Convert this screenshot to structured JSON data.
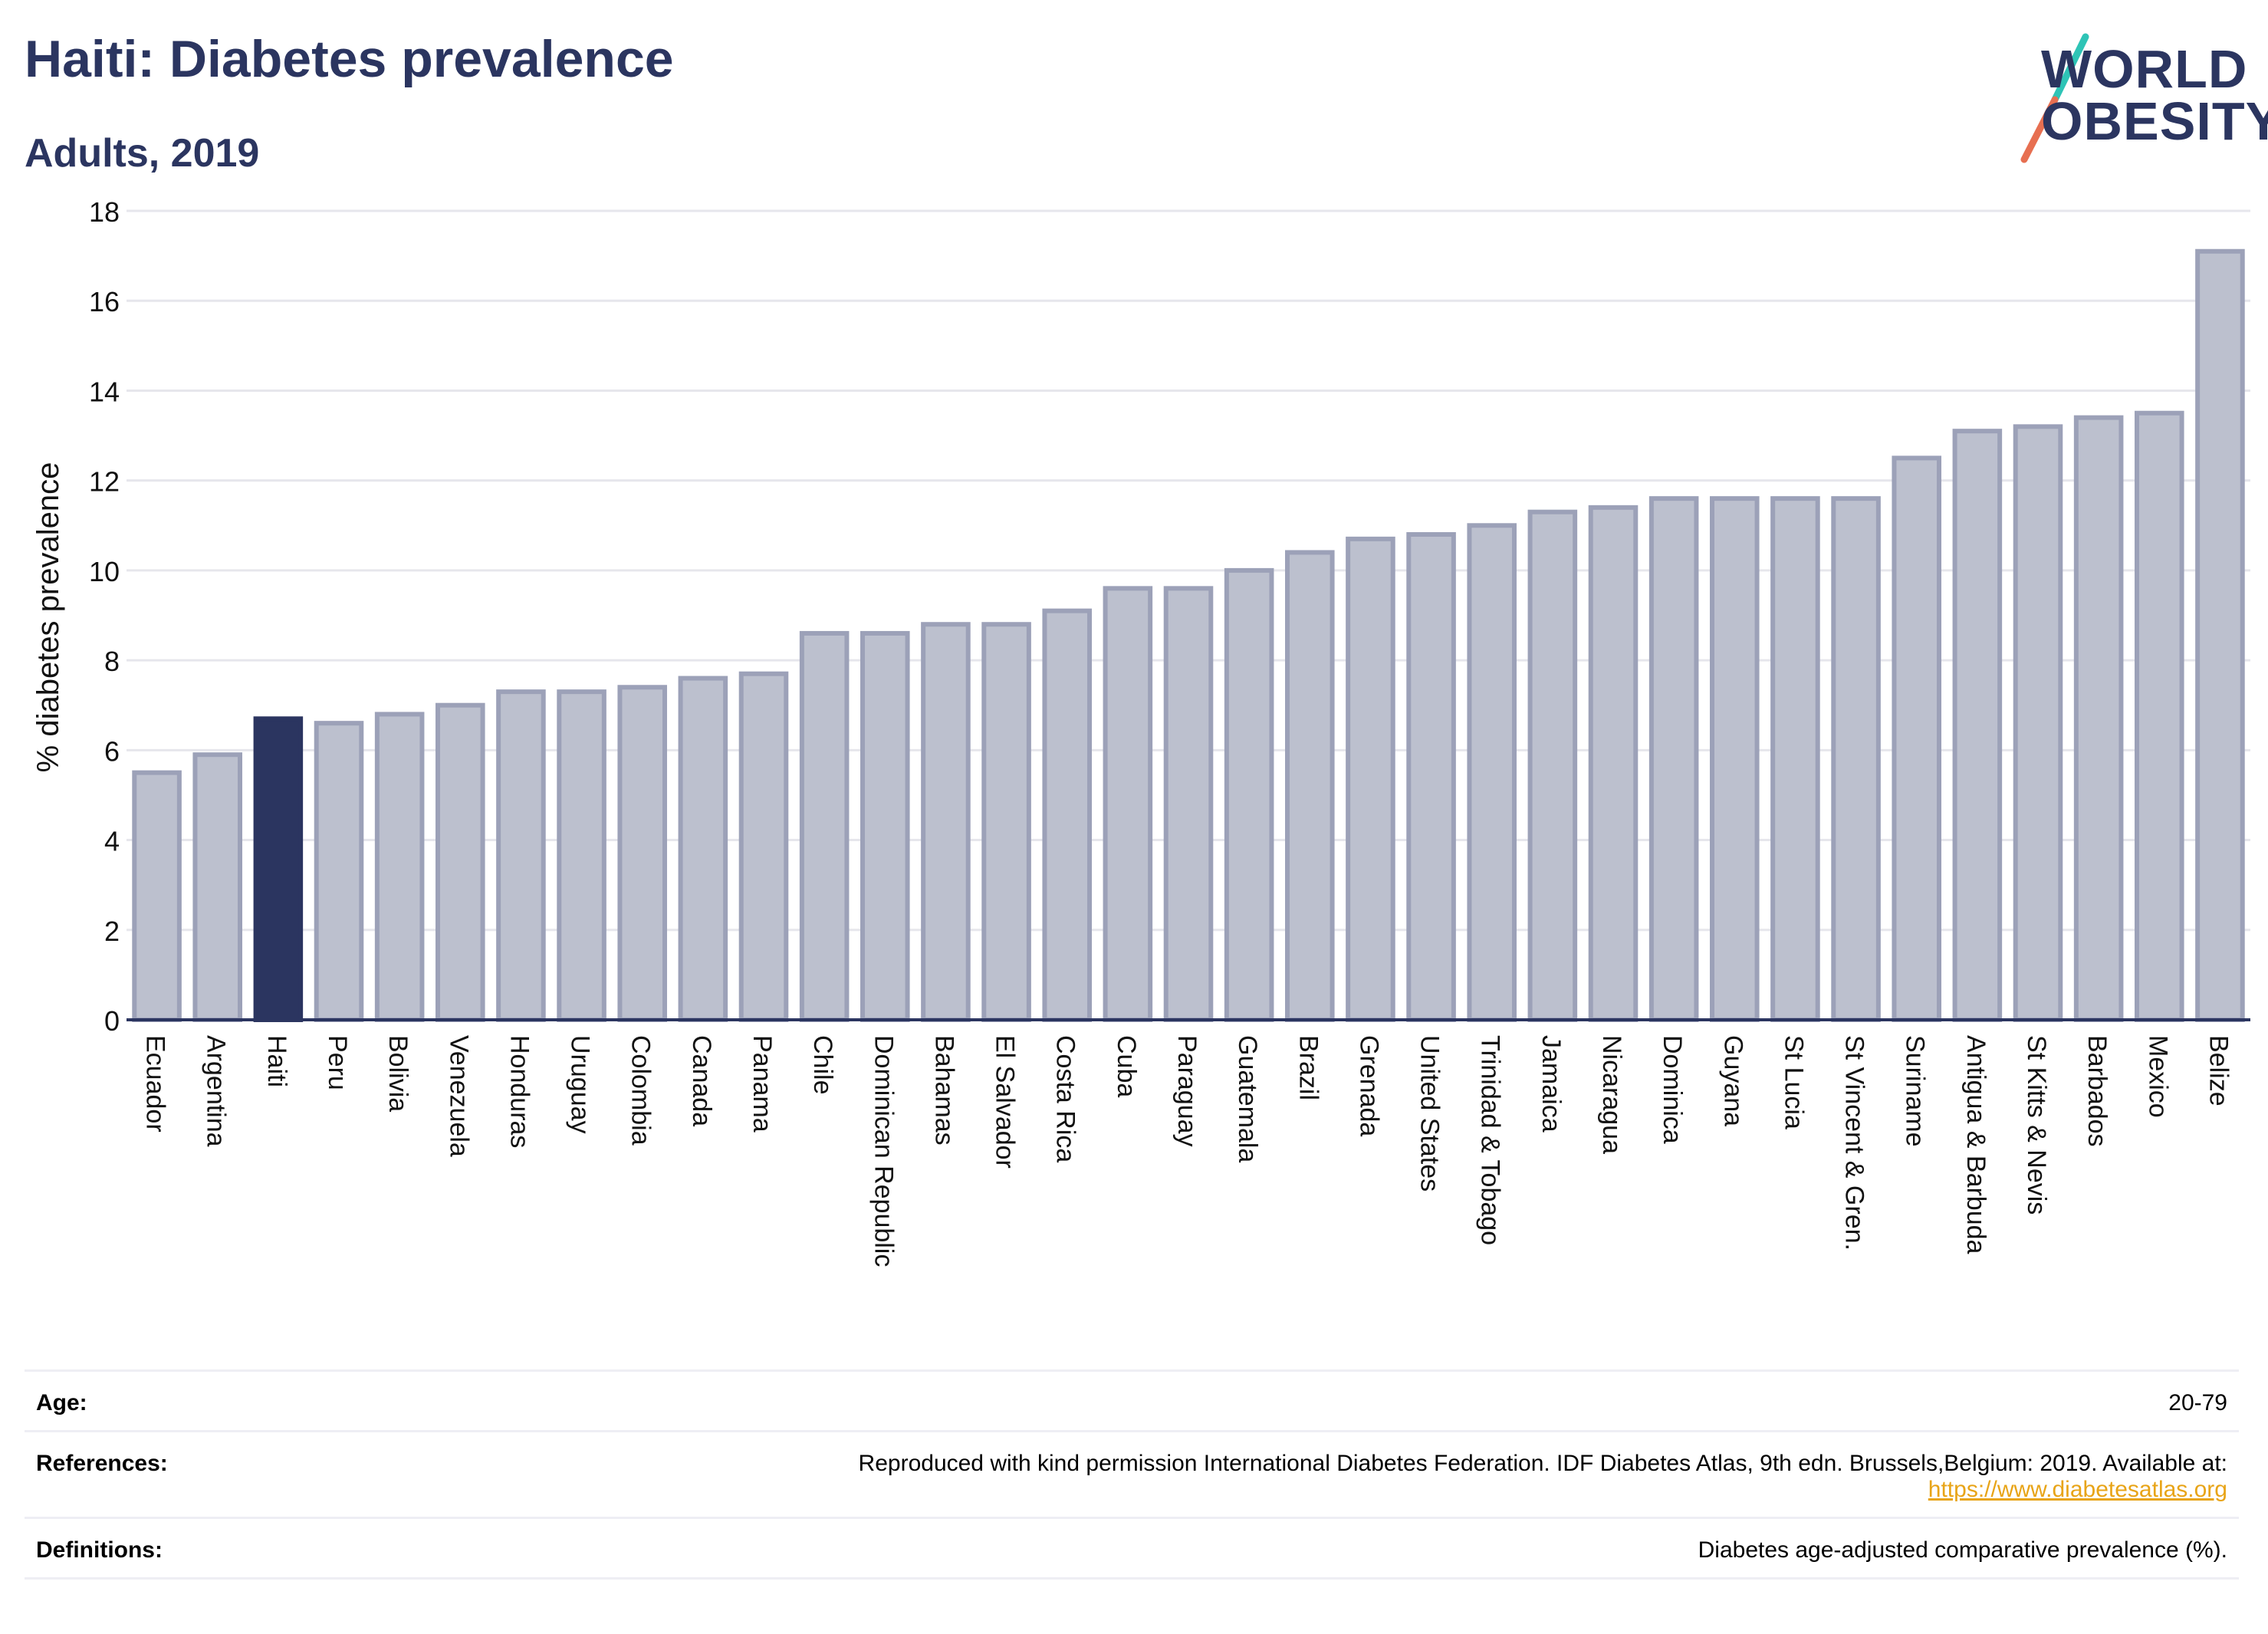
{
  "header": {
    "title": "Haiti: Diabetes prevalence",
    "subtitle": "Adults, 2019"
  },
  "logo": {
    "line1": "WORLD",
    "line2": "OBESITY",
    "colors": {
      "text": "#2b3560",
      "slash_top": "#2ec4b6",
      "slash_bottom": "#e76f51"
    }
  },
  "chart_data": {
    "type": "bar",
    "title": "Haiti: Diabetes prevalence",
    "subtitle": "Adults, 2019",
    "ylabel": "% diabetes prevalence",
    "xlabel": "",
    "ylim": [
      0,
      18
    ],
    "yticks": [
      0,
      2,
      4,
      6,
      8,
      10,
      12,
      14,
      16,
      18
    ],
    "grid": true,
    "highlight": "Haiti",
    "colors": {
      "bar": "#bcc0ce",
      "bar_border": "#9ca1b8",
      "highlight": "#2b3560",
      "grid": "#e6e6ec",
      "axis": "#2b3560"
    },
    "categories": [
      "Ecuador",
      "Argentina",
      "Haiti",
      "Peru",
      "Bolivia",
      "Venezuela",
      "Honduras",
      "Uruguay",
      "Colombia",
      "Canada",
      "Panama",
      "Chile",
      "Dominican Republic",
      "Bahamas",
      "El Salvador",
      "Costa Rica",
      "Cuba",
      "Paraguay",
      "Guatemala",
      "Brazil",
      "Grenada",
      "United States",
      "Trinidad & Tobago",
      "Jamaica",
      "Nicaragua",
      "Dominica",
      "Guyana",
      "St Lucia",
      "St Vincent & Gren.",
      "Suriname",
      "Antigua & Barbuda",
      "St Kitts & Nevis",
      "Barbados",
      "Mexico",
      "Belize"
    ],
    "values": [
      5.5,
      5.9,
      6.7,
      6.6,
      6.8,
      7.0,
      7.3,
      7.3,
      7.4,
      7.6,
      7.7,
      8.6,
      8.6,
      8.8,
      8.8,
      9.1,
      9.6,
      9.6,
      10.0,
      10.4,
      10.7,
      10.8,
      11.0,
      11.3,
      11.4,
      11.6,
      11.6,
      11.6,
      11.6,
      12.5,
      13.1,
      13.2,
      13.4,
      13.5,
      17.1
    ]
  },
  "details": {
    "age_label": "Age:",
    "age_value": "20-79",
    "references_label": "References:",
    "references_text": "Reproduced with kind permission International Diabetes Federation. IDF Diabetes Atlas, 9th edn. Brussels,Belgium: 2019. Available at:",
    "references_link": "https://www.diabetesatlas.org",
    "definitions_label": "Definitions:",
    "definitions_value": "Diabetes age-adjusted comparative prevalence (%)."
  }
}
